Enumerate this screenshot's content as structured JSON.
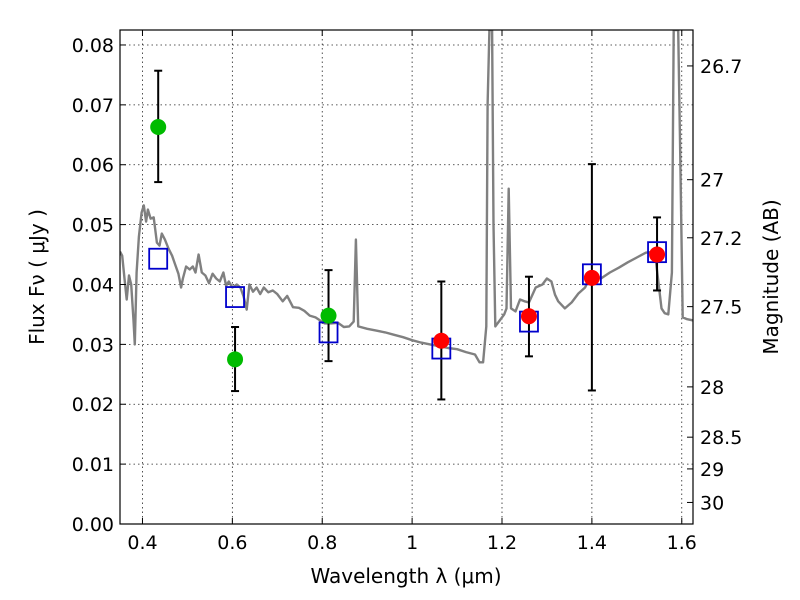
{
  "chart_data": {
    "type": "scatter",
    "title": "",
    "xlabel": "Wavelength  λ (μm)",
    "ylabel": "Flux  Fν  ( μJy )",
    "ylabel_right": "Magnitude (AB)",
    "xlim": [
      0.35,
      1.625
    ],
    "ylim": [
      0.0,
      0.0825
    ],
    "grid": true,
    "x_ticks": [
      0.4,
      0.6,
      0.8,
      1.0,
      1.2,
      1.4,
      1.6
    ],
    "x_tick_labels": [
      "0.4",
      "0.6",
      "0.8",
      "1",
      "1.2",
      "1.4",
      "1.6"
    ],
    "y_ticks": [
      0.0,
      0.01,
      0.02,
      0.03,
      0.04,
      0.05,
      0.06,
      0.07,
      0.08
    ],
    "y_tick_labels": [
      "0.00",
      "0.01",
      "0.02",
      "0.03",
      "0.04",
      "0.05",
      "0.06",
      "0.07",
      "0.08"
    ],
    "right_ticks": [
      {
        "label": "26.7",
        "flux": 0.0765
      },
      {
        "label": "27",
        "flux": 0.0575
      },
      {
        "label": "27.2",
        "flux": 0.0478
      },
      {
        "label": "27.5",
        "flux": 0.0363
      },
      {
        "label": "28",
        "flux": 0.0229
      },
      {
        "label": "28.5",
        "flux": 0.0145
      },
      {
        "label": "29",
        "flux": 0.0092
      },
      {
        "label": "30",
        "flux": 0.0036
      }
    ],
    "colors": {
      "model": "#808080",
      "green": "#00bb00",
      "red": "#ff0000",
      "square": "#0000cc",
      "errorbar": "#000000"
    },
    "series": [
      {
        "points": [
          {
            "x": 0.435,
            "y": 0.0663,
            "yerr_low": 0.0571,
            "yerr_high": 0.0757
          },
          {
            "x": 0.606,
            "y": 0.0275,
            "yerr_low": 0.0222,
            "yerr_high": 0.0329
          },
          {
            "x": 0.814,
            "y": 0.0348,
            "yerr_low": 0.0272,
            "yerr_high": 0.0424
          }
        ]
      },
      {
        "points": [
          {
            "x": 1.065,
            "y": 0.0306,
            "yerr_low": 0.0208,
            "yerr_high": 0.0405
          },
          {
            "x": 1.26,
            "y": 0.0347,
            "yerr_low": 0.028,
            "yerr_high": 0.0413
          },
          {
            "x": 1.4,
            "y": 0.0411,
            "yerr_low": 0.0223,
            "yerr_high": 0.0601
          },
          {
            "x": 1.545,
            "y": 0.045,
            "yerr_low": 0.039,
            "yerr_high": 0.0512
          }
        ]
      },
      {
        "points": [
          {
            "x": 0.435,
            "y": 0.0443
          },
          {
            "x": 0.606,
            "y": 0.0379
          },
          {
            "x": 0.814,
            "y": 0.032
          },
          {
            "x": 1.065,
            "y": 0.0293
          },
          {
            "x": 1.26,
            "y": 0.0338
          },
          {
            "x": 1.4,
            "y": 0.0417
          },
          {
            "x": 1.545,
            "y": 0.0454
          }
        ]
      }
    ],
    "model_spectrum": [
      [
        0.35,
        0.0455
      ],
      [
        0.355,
        0.0448
      ],
      [
        0.36,
        0.041
      ],
      [
        0.365,
        0.0375
      ],
      [
        0.37,
        0.0415
      ],
      [
        0.375,
        0.04
      ],
      [
        0.38,
        0.034
      ],
      [
        0.383,
        0.03
      ],
      [
        0.387,
        0.042
      ],
      [
        0.392,
        0.048
      ],
      [
        0.398,
        0.052
      ],
      [
        0.403,
        0.0532
      ],
      [
        0.408,
        0.0505
      ],
      [
        0.412,
        0.0525
      ],
      [
        0.418,
        0.051
      ],
      [
        0.425,
        0.0512
      ],
      [
        0.432,
        0.047
      ],
      [
        0.438,
        0.0465
      ],
      [
        0.443,
        0.0485
      ],
      [
        0.45,
        0.0475
      ],
      [
        0.458,
        0.046
      ],
      [
        0.466,
        0.0448
      ],
      [
        0.472,
        0.0435
      ],
      [
        0.48,
        0.0418
      ],
      [
        0.486,
        0.0395
      ],
      [
        0.49,
        0.041
      ],
      [
        0.497,
        0.043
      ],
      [
        0.505,
        0.0425
      ],
      [
        0.512,
        0.043
      ],
      [
        0.518,
        0.042
      ],
      [
        0.525,
        0.045
      ],
      [
        0.532,
        0.042
      ],
      [
        0.54,
        0.0415
      ],
      [
        0.548,
        0.0402
      ],
      [
        0.556,
        0.0418
      ],
      [
        0.564,
        0.041
      ],
      [
        0.572,
        0.0405
      ],
      [
        0.58,
        0.042
      ],
      [
        0.586,
        0.0398
      ],
      [
        0.592,
        0.0405
      ],
      [
        0.6,
        0.0395
      ],
      [
        0.61,
        0.04
      ],
      [
        0.618,
        0.0395
      ],
      [
        0.625,
        0.038
      ],
      [
        0.632,
        0.0358
      ],
      [
        0.638,
        0.04
      ],
      [
        0.646,
        0.0388
      ],
      [
        0.654,
        0.0395
      ],
      [
        0.662,
        0.0384
      ],
      [
        0.67,
        0.0395
      ],
      [
        0.68,
        0.0387
      ],
      [
        0.69,
        0.039
      ],
      [
        0.7,
        0.0384
      ],
      [
        0.712,
        0.0372
      ],
      [
        0.722,
        0.0381
      ],
      [
        0.735,
        0.0362
      ],
      [
        0.748,
        0.0361
      ],
      [
        0.76,
        0.0356
      ],
      [
        0.772,
        0.0348
      ],
      [
        0.785,
        0.0345
      ],
      [
        0.795,
        0.034
      ],
      [
        0.805,
        0.0335
      ],
      [
        0.82,
        0.0335
      ],
      [
        0.835,
        0.0336
      ],
      [
        0.848,
        0.0329
      ],
      [
        0.86,
        0.033
      ],
      [
        0.87,
        0.0338
      ],
      [
        0.875,
        0.0475
      ],
      [
        0.88,
        0.033
      ],
      [
        0.9,
        0.0326
      ],
      [
        0.92,
        0.0323
      ],
      [
        0.94,
        0.032
      ],
      [
        0.96,
        0.0316
      ],
      [
        0.98,
        0.0312
      ],
      [
        1.0,
        0.0307
      ],
      [
        1.02,
        0.0303
      ],
      [
        1.04,
        0.03
      ],
      [
        1.06,
        0.0297
      ],
      [
        1.08,
        0.0294
      ],
      [
        1.1,
        0.0292
      ],
      [
        1.12,
        0.0287
      ],
      [
        1.14,
        0.0283
      ],
      [
        1.15,
        0.027
      ],
      [
        1.158,
        0.027
      ],
      [
        1.165,
        0.033
      ],
      [
        1.168,
        0.07
      ],
      [
        1.172,
        0.0825
      ],
      [
        1.178,
        0.0825
      ],
      [
        1.181,
        0.05
      ],
      [
        1.185,
        0.033
      ],
      [
        1.195,
        0.034
      ],
      [
        1.205,
        0.035
      ],
      [
        1.21,
        0.036
      ],
      [
        1.215,
        0.056
      ],
      [
        1.22,
        0.036
      ],
      [
        1.23,
        0.0355
      ],
      [
        1.24,
        0.0375
      ],
      [
        1.25,
        0.0372
      ],
      [
        1.26,
        0.037
      ],
      [
        1.275,
        0.0395
      ],
      [
        1.29,
        0.04
      ],
      [
        1.3,
        0.041
      ],
      [
        1.31,
        0.0405
      ],
      [
        1.318,
        0.0383
      ],
      [
        1.325,
        0.0372
      ],
      [
        1.34,
        0.036
      ],
      [
        1.355,
        0.037
      ],
      [
        1.37,
        0.0385
      ],
      [
        1.385,
        0.0395
      ],
      [
        1.4,
        0.042
      ],
      [
        1.42,
        0.041
      ],
      [
        1.44,
        0.042
      ],
      [
        1.46,
        0.0428
      ],
      [
        1.48,
        0.0437
      ],
      [
        1.5,
        0.0445
      ],
      [
        1.52,
        0.0453
      ],
      [
        1.54,
        0.0455
      ],
      [
        1.555,
        0.036
      ],
      [
        1.562,
        0.0352
      ],
      [
        1.57,
        0.035
      ],
      [
        1.578,
        0.042
      ],
      [
        1.582,
        0.0825
      ],
      [
        1.592,
        0.0825
      ],
      [
        1.597,
        0.06
      ],
      [
        1.602,
        0.0345
      ],
      [
        1.612,
        0.0342
      ],
      [
        1.625,
        0.034
      ]
    ]
  }
}
